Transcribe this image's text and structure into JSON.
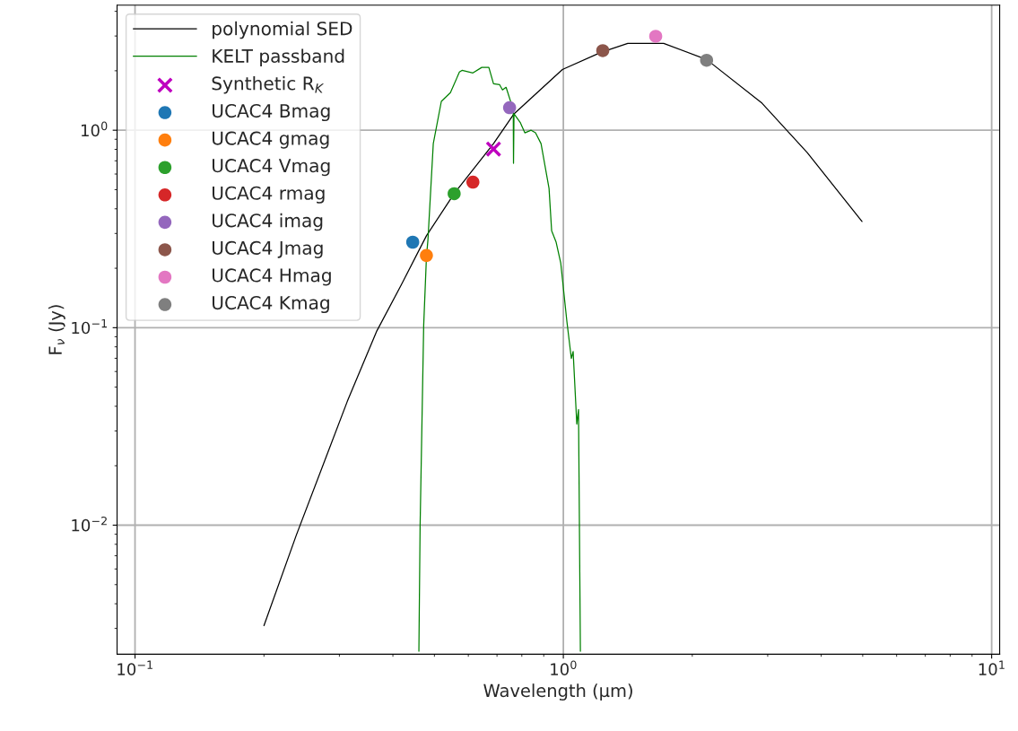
{
  "chart_data": {
    "type": "scatter",
    "xlabel": "Wavelength (μm)",
    "ylabel": "F$_{ν}$ (Jy)",
    "log": "xy",
    "grid": true,
    "legend": "top left",
    "xlim": [
      0.0908,
      10.44
    ],
    "ylim": [
      0.00222,
      4.3
    ],
    "xticks": [
      {
        "value": 0.1,
        "label": "10$^{−1}$"
      },
      {
        "value": 1,
        "label": "10$^{0}$"
      },
      {
        "value": 10,
        "label": "10$^{1}$"
      }
    ],
    "yticks": [
      {
        "value": 0.01,
        "label": "10$^{−2}$"
      },
      {
        "value": 0.1,
        "label": "10$^{−1}$"
      },
      {
        "value": 1,
        "label": "10$^{0}$"
      }
    ],
    "series": [
      {
        "name": "polynomial SED",
        "type": "line",
        "color": "#000000",
        "x": [
          0.2,
          0.238,
          0.313,
          0.367,
          0.418,
          0.479,
          0.556,
          0.687,
          0.767,
          0.995,
          1.224,
          1.414,
          1.715,
          2.16,
          2.91,
          3.71,
          4.98
        ],
        "values": [
          0.0031,
          0.0089,
          0.0423,
          0.0964,
          0.164,
          0.292,
          0.477,
          0.855,
          1.21,
          2.03,
          2.48,
          2.75,
          2.75,
          2.28,
          1.37,
          0.77,
          0.345
        ]
      },
      {
        "name": "KELT passband",
        "type": "line",
        "color": "#008000",
        "x": [
          0.46,
          0.463,
          0.472,
          0.479,
          0.483,
          0.497,
          0.519,
          0.545,
          0.572,
          0.58,
          0.615,
          0.645,
          0.67,
          0.687,
          0.71,
          0.721,
          0.735,
          0.764,
          0.765,
          0.767,
          0.794,
          0.813,
          0.841,
          0.861,
          0.887,
          0.926,
          0.939,
          0.962,
          0.986,
          1.019,
          1.044,
          1.054,
          1.075,
          1.085,
          1.096
        ],
        "values": [
          0.0023,
          0.0099,
          0.1026,
          0.227,
          0.28,
          0.855,
          1.4,
          1.55,
          1.97,
          2.01,
          1.95,
          2.08,
          2.08,
          1.72,
          1.7,
          1.6,
          1.65,
          1.27,
          0.68,
          1.21,
          1.09,
          0.97,
          1.0,
          0.97,
          0.855,
          0.507,
          0.31,
          0.271,
          0.213,
          0.108,
          0.0698,
          0.0758,
          0.0325,
          0.0385,
          0.0023
        ]
      },
      {
        "name": "Synthetic R$_{K}$",
        "marker": "cross",
        "color": "#bf00bf",
        "x": [
          0.687
        ],
        "values": [
          0.803
        ]
      },
      {
        "name": "UCAC4 Bmag",
        "marker": "circle",
        "color": "#1f77b4",
        "x": [
          0.445
        ],
        "values": [
          0.271
        ]
      },
      {
        "name": "UCAC4 gmag",
        "marker": "circle",
        "color": "#ff7f0e",
        "x": [
          0.479
        ],
        "values": [
          0.232
        ]
      },
      {
        "name": "UCAC4 Vmag",
        "marker": "circle",
        "color": "#2ca02c",
        "x": [
          0.556
        ],
        "values": [
          0.477
        ]
      },
      {
        "name": "UCAC4 rmag",
        "marker": "circle",
        "color": "#d62728",
        "x": [
          0.615
        ],
        "values": [
          0.546
        ]
      },
      {
        "name": "UCAC4 imag",
        "marker": "circle",
        "color": "#9467bd",
        "x": [
          0.749
        ],
        "values": [
          1.3
        ]
      },
      {
        "name": "UCAC4 Jmag",
        "marker": "circle",
        "color": "#8c564b",
        "x": [
          1.236
        ],
        "values": [
          2.53
        ]
      },
      {
        "name": "UCAC4 Hmag",
        "marker": "circle",
        "color": "#e377c2",
        "x": [
          1.643
        ],
        "values": [
          2.99
        ]
      },
      {
        "name": "UCAC4 Kmag",
        "marker": "circle",
        "color": "#7f7f7f",
        "x": [
          2.16
        ],
        "values": [
          2.26
        ]
      }
    ]
  }
}
